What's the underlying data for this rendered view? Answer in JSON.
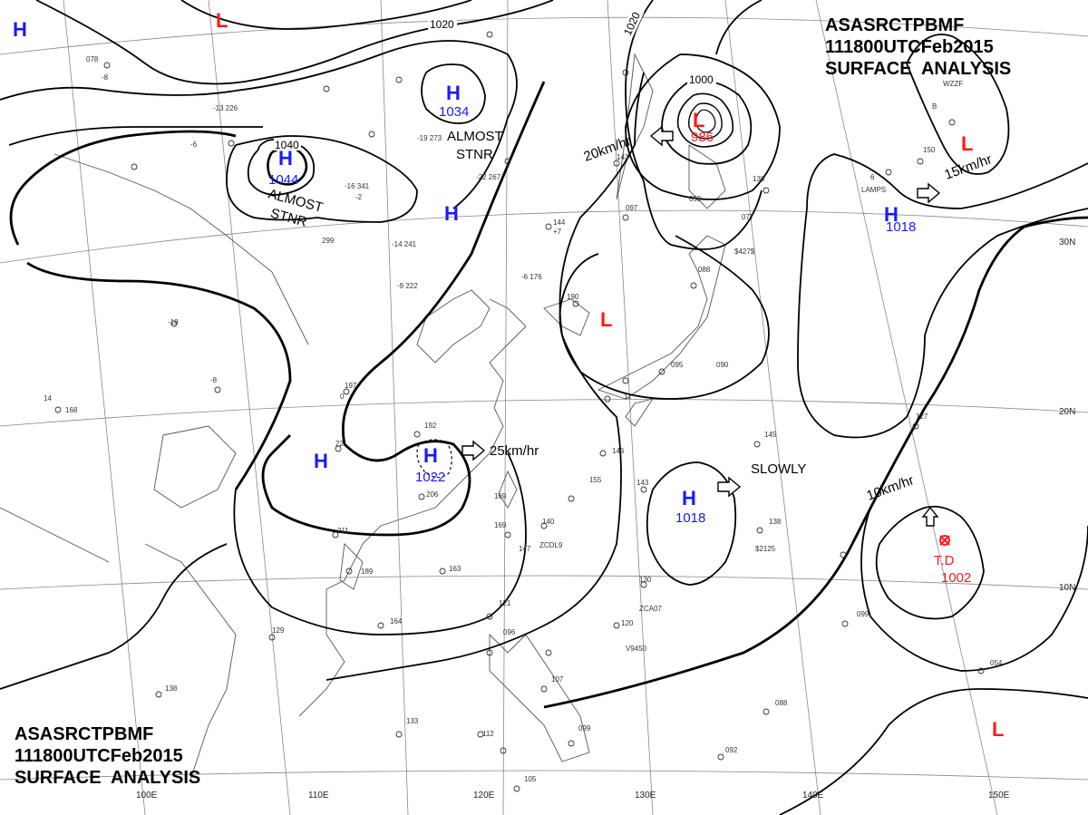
{
  "header": {
    "line1": [
      "ASAS",
      "RCTP",
      "BMF"
    ],
    "line2": [
      "111800UTC",
      "Feb",
      "2015"
    ],
    "line3": "SURFACE  ANALYSIS"
  },
  "systems": [
    {
      "type": "H",
      "label": "H"
    },
    {
      "type": "H",
      "label": "H",
      "pressure": "1034"
    },
    {
      "type": "H",
      "label": "H",
      "pressure": "1044"
    },
    {
      "type": "H",
      "label": "H"
    },
    {
      "type": "H",
      "label": "H"
    },
    {
      "type": "H",
      "label": "H",
      "pressure": "1022"
    },
    {
      "type": "H",
      "label": "H",
      "pressure": "1018"
    },
    {
      "type": "H",
      "label": "H",
      "pressure": "1018"
    },
    {
      "type": "L",
      "label": "L"
    },
    {
      "type": "L",
      "label": "L",
      "pressure": "986"
    },
    {
      "type": "L",
      "label": "L"
    },
    {
      "type": "L",
      "label": "L"
    },
    {
      "type": "L",
      "label": "L"
    },
    {
      "type": "TD",
      "label": "T.D",
      "pressure": "1002"
    }
  ],
  "notes": {
    "almost_stnr_1": [
      "ALMOST",
      "STNR"
    ],
    "almost_stnr_2": [
      "ALMOST",
      "STNR"
    ],
    "slowly": "SLOWLY"
  },
  "motions": [
    "20km/hr",
    "15km/hr",
    "25km/hr",
    "10km/hr"
  ],
  "isobar_labels": [
    "1020",
    "1020",
    "1040",
    "1000"
  ],
  "longitude_labels": [
    "100E",
    "110E",
    "120E",
    "130E",
    "140E",
    "150E"
  ],
  "latitude_labels": [
    "30N",
    "20N",
    "10N"
  ],
  "colors": {
    "high": "#1a1aff",
    "low": "#ff1a1a",
    "isobar": "#000000",
    "coast": "#555555"
  }
}
